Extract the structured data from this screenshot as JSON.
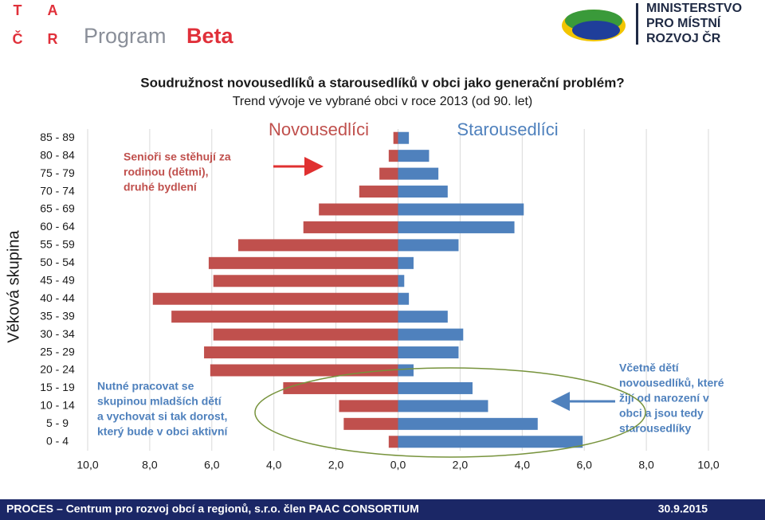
{
  "header": {
    "tacr_letters": [
      "T",
      "A",
      "Č",
      "R"
    ],
    "program": "Program",
    "program_name": "Beta",
    "ministry_lines": [
      "MINISTERSTVO",
      "PRO MÍSTNÍ",
      "ROZVOJ ČR"
    ]
  },
  "chart_data": {
    "type": "pyramid",
    "title": "Soudružnost novousedlíků a starousedlíků v obci jako generační problém?",
    "subtitle": "Trend vývoje ve vybrané obci v roce 2013 (od 90. let)",
    "y_label": "Věková skupina",
    "categories": [
      "85 - 89",
      "80 - 84",
      "75 - 79",
      "70 - 74",
      "65 - 69",
      "60 - 64",
      "55 - 59",
      "50 - 54",
      "45 - 49",
      "40 - 44",
      "35 - 39",
      "30 - 34",
      "25 - 29",
      "20 - 24",
      "15 - 19",
      "10 - 14",
      "5 - 9",
      "0 - 4"
    ],
    "series": [
      {
        "name": "Novousedlíci",
        "color": "#c0504d",
        "values": [
          -0.15,
          -0.3,
          -0.6,
          -1.25,
          -2.55,
          -3.05,
          -5.15,
          -6.1,
          -5.95,
          -7.9,
          -7.3,
          -5.95,
          -6.25,
          -6.05,
          -3.7,
          -1.9,
          -1.75,
          -0.3
        ]
      },
      {
        "name": "Starousedlíci",
        "color": "#4f81bd",
        "values": [
          0.35,
          1.0,
          1.3,
          1.6,
          4.05,
          3.75,
          1.95,
          0.5,
          0.2,
          0.35,
          1.6,
          2.1,
          1.95,
          0.5,
          2.4,
          2.9,
          4.5,
          5.95
        ]
      }
    ],
    "xlim": [
      -10,
      10
    ],
    "xticks": [
      {
        "value": -10,
        "label": "10,0"
      },
      {
        "value": -8,
        "label": "8,0"
      },
      {
        "value": -6,
        "label": "6,0"
      },
      {
        "value": -4,
        "label": "4,0"
      },
      {
        "value": -2,
        "label": "2,0"
      },
      {
        "value": 0,
        "label": "0,0"
      },
      {
        "value": 2,
        "label": "2,0"
      },
      {
        "value": 4,
        "label": "4,0"
      },
      {
        "value": 6,
        "label": "6,0"
      },
      {
        "value": 8,
        "label": "8,0"
      },
      {
        "value": 10,
        "label": "10,0"
      }
    ],
    "grid": true,
    "annotations": [
      [
        "Senioři  se stěhují za",
        "rodinou (dětmi),",
        "druhé bydlení"
      ],
      [
        "Nutné pracovat se",
        "skupinou  mladších dětí",
        "a vychovat si tak dorost,",
        "který bude v obci aktivní"
      ],
      [
        "Včetně dětí",
        "novousedlíků, které",
        "žijí od narození v",
        "obci a jsou tedy",
        "starousedlíky"
      ]
    ]
  },
  "footer": {
    "left": "PROCES – Centrum pro rozvoj obcí a regionů, s.r.o. člen PAAC CONSORTIUM",
    "date": "30.9.2015"
  }
}
